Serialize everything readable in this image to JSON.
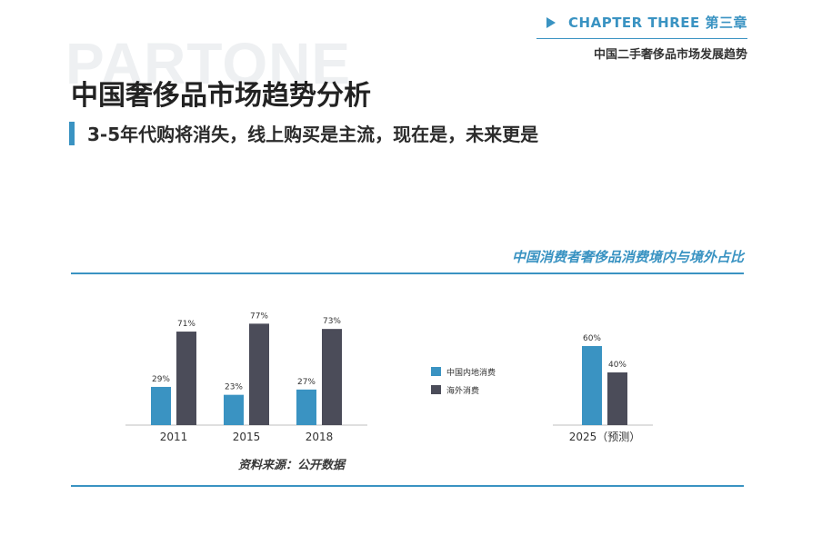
{
  "watermark": "PARTONE",
  "chapter": {
    "label": "CHAPTER THREE 第三章",
    "subtitle": "中国二手奢侈品市场发展趋势"
  },
  "title": "中国奢侈品市场趋势分析",
  "subtitle": "3-5年代购将消失，线上购买是主流，现在是，未来更是",
  "source": "资料来源：公开数据",
  "colors": {
    "accent": "#3a93c2",
    "domestic": "#3a93c2",
    "overseas": "#4b4c59"
  },
  "chart_data": {
    "type": "bar",
    "title": "中国消费者奢侈品消费境内与境外占比",
    "categories": [
      "2011",
      "2015",
      "2018",
      "2025（预测）"
    ],
    "series": [
      {
        "name": "中国内地消费",
        "values": [
          29,
          23,
          27,
          60
        ],
        "labels": [
          "29%",
          "23%",
          "27%",
          "60%"
        ]
      },
      {
        "name": "海外消费",
        "values": [
          71,
          77,
          73,
          40
        ],
        "labels": [
          "71%",
          "77%",
          "73%",
          "40%"
        ]
      }
    ],
    "ylim": [
      0,
      100
    ],
    "unit": "%",
    "legend": "between-groups",
    "grid": false
  }
}
